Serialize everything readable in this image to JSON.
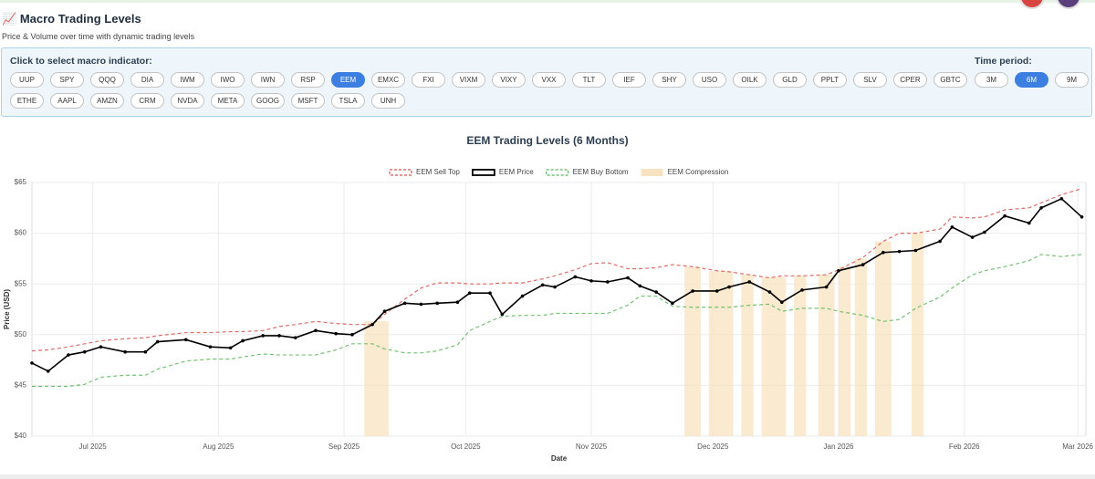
{
  "header": {
    "icon": "📈",
    "title": "Macro Trading Levels",
    "subtitle": "Price & Volume over time with dynamic trading levels"
  },
  "selector": {
    "label": "Click to select macro indicator:",
    "active": "EEM",
    "indicators": [
      "UUP",
      "SPY",
      "QQQ",
      "DIA",
      "IWM",
      "IWO",
      "IWN",
      "RSP",
      "EEM",
      "EMXC",
      "FXI",
      "VIXM",
      "VIXY",
      "VXX",
      "TLT",
      "IEF",
      "SHY",
      "USO",
      "OILK",
      "GLD",
      "PPLT",
      "SLV",
      "CPER",
      "GBTC",
      "ETHE",
      "AAPL",
      "AMZN",
      "CRM",
      "NVDA",
      "META",
      "GOOG",
      "MSFT",
      "TSLA",
      "UNH"
    ]
  },
  "period": {
    "label": "Time period:",
    "active": "6M",
    "options": [
      "3M",
      "6M",
      "9M"
    ]
  },
  "chart_data": {
    "type": "line",
    "title": "EEM Trading Levels (6 Months)",
    "x_label": "Date",
    "y_label": "Price (USD)",
    "grid": true,
    "xlim": [
      0,
      260
    ],
    "xticks": [
      {
        "value": 15,
        "label": "Jul 2025"
      },
      {
        "value": 46,
        "label": "Aug 2025"
      },
      {
        "value": 77,
        "label": "Sep 2025"
      },
      {
        "value": 107,
        "label": "Oct 2025"
      },
      {
        "value": 138,
        "label": "Nov 2025"
      },
      {
        "value": 168,
        "label": "Dec 2025"
      },
      {
        "value": 199,
        "label": "Jan 2026"
      },
      {
        "value": 230,
        "label": "Feb 2026"
      },
      {
        "value": 258,
        "label": "Mar 2026"
      }
    ],
    "ylim": [
      40,
      65
    ],
    "yticks": [
      {
        "value": 40,
        "label": "$40"
      },
      {
        "value": 45,
        "label": "$45"
      },
      {
        "value": 50,
        "label": "$50"
      },
      {
        "value": 55,
        "label": "$55"
      },
      {
        "value": 60,
        "label": "$60"
      },
      {
        "value": 65,
        "label": "$65"
      }
    ],
    "x": [
      0,
      4,
      9,
      13,
      17,
      23,
      28,
      31,
      38,
      44,
      49,
      52,
      57,
      61,
      65,
      70,
      75,
      79,
      84,
      87,
      92,
      96,
      100,
      105,
      108,
      113,
      116,
      121,
      126,
      129,
      134,
      138,
      142,
      147,
      150,
      154,
      158,
      163,
      169,
      172,
      177,
      182,
      185,
      190,
      196,
      199,
      205,
      210,
      214,
      218,
      224,
      227,
      232,
      235,
      240,
      246,
      249,
      254,
      259
    ],
    "series": [
      {
        "name": "EEM Sell Top",
        "color": "#d9534f",
        "dashed": true,
        "markers": false,
        "values": [
          48.4,
          48.5,
          48.8,
          49.1,
          49.4,
          49.6,
          49.7,
          49.9,
          50.2,
          50.2,
          50.3,
          50.3,
          50.4,
          50.8,
          51.0,
          51.3,
          51.1,
          51.0,
          51.0,
          52.0,
          53.5,
          54.6,
          55.1,
          55.1,
          55.0,
          55.0,
          55.1,
          55.1,
          55.5,
          55.8,
          56.4,
          57.0,
          57.1,
          56.5,
          56.5,
          56.6,
          56.9,
          56.7,
          56.3,
          56.2,
          55.9,
          55.6,
          55.8,
          55.8,
          55.9,
          56.4,
          57.6,
          59.2,
          60.0,
          60.0,
          60.4,
          61.6,
          61.5,
          61.6,
          62.3,
          62.5,
          63.0,
          63.8,
          64.4
        ]
      },
      {
        "name": "EEM Price",
        "color": "#000000",
        "dashed": false,
        "markers": true,
        "values": [
          47.2,
          46.4,
          48.0,
          48.3,
          48.8,
          48.3,
          48.3,
          49.3,
          49.5,
          48.8,
          48.7,
          49.4,
          49.9,
          49.9,
          49.7,
          50.4,
          50.1,
          50.0,
          51.0,
          52.3,
          53.1,
          53.0,
          53.1,
          53.2,
          54.1,
          54.1,
          52.0,
          53.8,
          54.9,
          54.7,
          55.7,
          55.3,
          55.2,
          55.6,
          54.8,
          54.2,
          53.1,
          54.3,
          54.3,
          54.7,
          55.2,
          54.2,
          53.2,
          54.4,
          54.7,
          56.3,
          56.9,
          58.1,
          58.2,
          58.3,
          59.2,
          60.6,
          59.6,
          60.1,
          61.7,
          61.0,
          62.5,
          63.4,
          61.6
        ]
      },
      {
        "name": "EEM Buy Bottom",
        "color": "#5cb85c",
        "dashed": true,
        "markers": false,
        "values": [
          44.9,
          44.9,
          44.9,
          45.1,
          45.8,
          46.0,
          46.0,
          46.6,
          47.4,
          47.6,
          47.6,
          47.8,
          48.1,
          48.0,
          48.0,
          48.0,
          48.5,
          49.1,
          49.1,
          48.6,
          48.2,
          48.2,
          48.4,
          49.0,
          50.4,
          51.3,
          51.8,
          51.9,
          51.9,
          52.1,
          52.1,
          52.1,
          52.1,
          52.9,
          53.8,
          53.8,
          52.8,
          52.7,
          52.7,
          52.7,
          52.9,
          53.0,
          52.3,
          52.6,
          52.6,
          52.3,
          51.9,
          51.3,
          51.5,
          52.6,
          53.7,
          54.6,
          55.9,
          56.3,
          56.7,
          57.3,
          57.9,
          57.7,
          57.9
        ]
      }
    ],
    "compression": {
      "name": "EEM Compression",
      "color": "#f7e3c0",
      "ranges": [
        [
          82,
          88
        ],
        [
          161,
          165
        ],
        [
          167,
          173
        ],
        [
          175,
          178
        ],
        [
          180,
          186
        ],
        [
          188,
          191
        ],
        [
          194,
          198
        ],
        [
          199,
          202
        ],
        [
          203,
          206
        ],
        [
          208,
          212
        ],
        [
          217,
          220
        ]
      ]
    }
  }
}
